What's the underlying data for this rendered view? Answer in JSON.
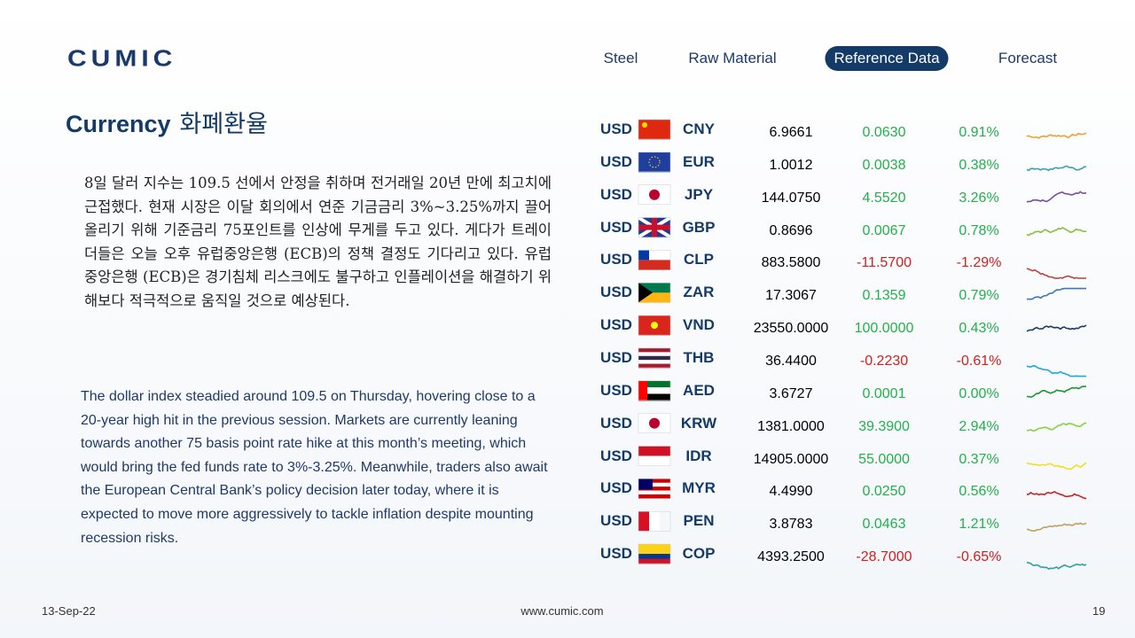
{
  "header": {
    "logo": "CUMIC",
    "nav": [
      "Steel",
      "Raw Material",
      "Reference Data",
      "Forecast"
    ]
  },
  "title": "Currency",
  "title_ko": "화폐환율",
  "paragraph_ko": "8일 달러 지수는 109.5 선에서 안정을 취하며 전거래일 20년 만에 최고치에 근접했다. 현재 시장은 이달 회의에서 연준 기금금리 3%~3.25%까지 끌어올리기 위해 기준금리 75포인트를 인상에 무게를 두고 있다. 게다가 트레이더들은 오늘 오후 유럽중앙은행 (ECB)의 정책 결정도 기다리고 있다. 유럽중앙은행 (ECB)은 경기침체 리스크에도 불구하고 인플레이션을 해결하기 위해보다 적극적으로 움직일 것으로 예상된다.",
  "paragraph_en": "The dollar index steadied around 109.5 on Thursday, hovering close to a 20-year high hit in the previous session.  Markets are currently leaning towards another 75 basis point rate hike at this month’s meeting, which would bring the fed funds rate to 3%-3.25%. Meanwhile, traders also await the European Central Bank’s policy decision later today, where it is expected to move more aggressively to tackle inflation despite mounting recession risks.",
  "table": {
    "rows": [
      [
        "USD",
        "CNY",
        "6.9661",
        "0.0630",
        "0.91%"
      ],
      [
        "USD",
        "EUR",
        "1.0012",
        "0.0038",
        "0.38%"
      ],
      [
        "USD",
        "JPY",
        "144.0750",
        "4.5520",
        "3.26%"
      ],
      [
        "USD",
        "GBP",
        "0.8696",
        "0.0067",
        "0.78%"
      ],
      [
        "USD",
        "CLP",
        "883.5800",
        "-11.5700",
        "-1.29%"
      ],
      [
        "USD",
        "ZAR",
        "17.3067",
        "0.1359",
        "0.79%"
      ],
      [
        "USD",
        "VND",
        "23550.0000",
        "100.0000",
        "0.43%"
      ],
      [
        "USD",
        "THB",
        "36.4400",
        "-0.2230",
        "-0.61%"
      ],
      [
        "USD",
        "AED",
        "3.6727",
        "0.0001",
        "0.00%"
      ],
      [
        "USD",
        "KRW",
        "1381.0000",
        "39.3900",
        "2.94%"
      ],
      [
        "USD",
        "IDR",
        "14905.0000",
        "55.0000",
        "0.37%"
      ],
      [
        "USD",
        "MYR",
        "4.4990",
        "0.0250",
        "0.56%"
      ],
      [
        "USD",
        "PEN",
        "3.8783",
        "0.0463",
        "1.21%"
      ],
      [
        "USD",
        "COP",
        "4393.2500",
        "-28.7000",
        "-0.65%"
      ]
    ]
  },
  "footer": {
    "date": "13-Sep-22",
    "url": "www.cumic.com",
    "page": "19"
  }
}
